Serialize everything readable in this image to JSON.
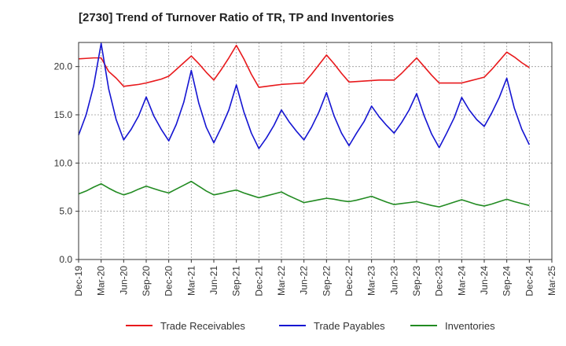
{
  "chart_data": {
    "type": "line",
    "title": "[2730]  Trend of Turnover Ratio of TR, TP and Inventories",
    "xlabel": "",
    "ylabel": "",
    "ylim": [
      0,
      22.5
    ],
    "yticks": [
      "0.0",
      "5.0",
      "10.0",
      "15.0",
      "20.0"
    ],
    "ytick_values": [
      0,
      5,
      10,
      15,
      20
    ],
    "xtick_labels": [
      "Dec-19",
      "Mar-20",
      "Jun-20",
      "Sep-20",
      "Dec-20",
      "Mar-21",
      "Jun-21",
      "Sep-21",
      "Dec-21",
      "Mar-22",
      "Jun-22",
      "Sep-22",
      "Dec-22",
      "Mar-23",
      "Jun-23",
      "Sep-23",
      "Dec-23",
      "Mar-24",
      "Jun-24",
      "Sep-24",
      "Dec-24",
      "Mar-25"
    ],
    "x": [
      "2019-12",
      "2020-01",
      "2020-02",
      "2020-03",
      "2020-04",
      "2020-05",
      "2020-06",
      "2020-07",
      "2020-08",
      "2020-09",
      "2020-10",
      "2020-11",
      "2020-12",
      "2021-01",
      "2021-02",
      "2021-03",
      "2021-04",
      "2021-05",
      "2021-06",
      "2021-07",
      "2021-08",
      "2021-09",
      "2021-10",
      "2021-11",
      "2021-12",
      "2022-01",
      "2022-02",
      "2022-03",
      "2022-04",
      "2022-05",
      "2022-06",
      "2022-07",
      "2022-08",
      "2022-09",
      "2022-10",
      "2022-11",
      "2022-12",
      "2023-01",
      "2023-02",
      "2023-03",
      "2023-04",
      "2023-05",
      "2023-06",
      "2023-07",
      "2023-08",
      "2023-09",
      "2023-10",
      "2023-11",
      "2023-12",
      "2024-01",
      "2024-02",
      "2024-03",
      "2024-04",
      "2024-05",
      "2024-06",
      "2024-07",
      "2024-08",
      "2024-09",
      "2024-10",
      "2024-11",
      "2024-12"
    ],
    "grid": true,
    "legend_position": "bottom",
    "series": [
      {
        "name": "Trade Receivables",
        "color": "#e8191c",
        "values": [
          20.8,
          20.85,
          20.9,
          20.9,
          19.5,
          18.8,
          17.95,
          18.05,
          18.15,
          18.3,
          18.5,
          18.7,
          19.0,
          19.7,
          20.4,
          21.1,
          20.3,
          19.4,
          18.6,
          19.7,
          20.9,
          22.2,
          20.8,
          19.2,
          17.85,
          17.95,
          18.05,
          18.15,
          18.2,
          18.25,
          18.3,
          19.2,
          20.2,
          21.2,
          20.3,
          19.3,
          18.4,
          18.45,
          18.5,
          18.55,
          18.6,
          18.6,
          18.6,
          19.3,
          20.1,
          20.9,
          20.0,
          19.1,
          18.3,
          18.3,
          18.3,
          18.3,
          18.5,
          18.7,
          18.9,
          19.7,
          20.6,
          21.5,
          21.0,
          20.4,
          19.9
        ]
      },
      {
        "name": "Trade Payables",
        "color": "#1414d2",
        "values": [
          12.9,
          15.0,
          18.0,
          22.4,
          17.7,
          14.5,
          12.4,
          13.5,
          14.9,
          16.85,
          14.9,
          13.5,
          12.3,
          14.0,
          16.3,
          19.6,
          16.2,
          13.7,
          12.1,
          13.7,
          15.5,
          18.1,
          15.3,
          13.1,
          11.5,
          12.6,
          13.9,
          15.5,
          14.3,
          13.3,
          12.4,
          13.7,
          15.3,
          17.3,
          14.9,
          13.1,
          11.8,
          13.1,
          14.3,
          15.9,
          14.8,
          13.9,
          13.1,
          14.2,
          15.5,
          17.2,
          14.9,
          13.0,
          11.6,
          13.1,
          14.7,
          16.8,
          15.5,
          14.5,
          13.8,
          15.2,
          16.8,
          18.8,
          15.7,
          13.5,
          11.9
        ]
      },
      {
        "name": "Inventories",
        "color": "#228b22",
        "values": [
          6.8,
          7.1,
          7.5,
          7.85,
          7.4,
          7.0,
          6.7,
          6.95,
          7.3,
          7.6,
          7.35,
          7.1,
          6.9,
          7.3,
          7.7,
          8.1,
          7.6,
          7.1,
          6.7,
          6.85,
          7.05,
          7.2,
          6.9,
          6.65,
          6.4,
          6.6,
          6.8,
          7.0,
          6.6,
          6.25,
          5.9,
          6.05,
          6.2,
          6.35,
          6.25,
          6.1,
          6.0,
          6.15,
          6.35,
          6.55,
          6.25,
          5.95,
          5.7,
          5.8,
          5.9,
          6.0,
          5.8,
          5.6,
          5.45,
          5.7,
          5.95,
          6.2,
          5.95,
          5.7,
          5.55,
          5.75,
          6.0,
          6.25,
          6.0,
          5.8,
          5.6
        ]
      }
    ]
  }
}
